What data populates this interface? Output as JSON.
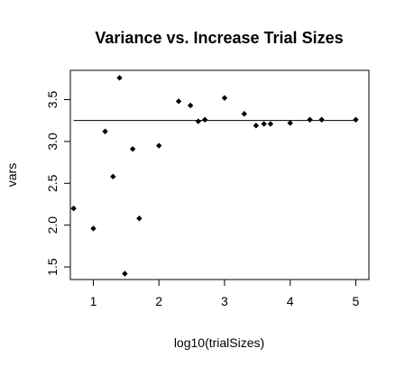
{
  "chart_data": {
    "type": "scatter",
    "title": "Variance vs. Increase Trial Sizes",
    "xlabel": "log10(trialSizes)",
    "ylabel": "vars",
    "xlim": [
      0.65,
      5.2
    ],
    "ylim": [
      1.35,
      3.85
    ],
    "xticks": [
      1,
      2,
      3,
      4,
      5
    ],
    "yticks": [
      1.5,
      2.0,
      2.5,
      3.0,
      3.5
    ],
    "xtick_labels": [
      "1",
      "2",
      "3",
      "4",
      "5"
    ],
    "ytick_labels": [
      "1.5",
      "2.0",
      "2.5",
      "3.0",
      "3.5"
    ],
    "marker": "diamond",
    "color": "#000000",
    "grid": false,
    "reference_line": {
      "type": "horizontal",
      "y": 3.25,
      "x_range": [
        0.7,
        5.0
      ]
    },
    "points": [
      {
        "x": 0.7,
        "y": 2.2
      },
      {
        "x": 1.0,
        "y": 1.96
      },
      {
        "x": 1.18,
        "y": 3.12
      },
      {
        "x": 1.3,
        "y": 2.58
      },
      {
        "x": 1.4,
        "y": 3.76
      },
      {
        "x": 1.48,
        "y": 1.42
      },
      {
        "x": 1.6,
        "y": 2.91
      },
      {
        "x": 1.7,
        "y": 2.08
      },
      {
        "x": 2.0,
        "y": 2.95
      },
      {
        "x": 2.3,
        "y": 3.48
      },
      {
        "x": 2.48,
        "y": 3.43
      },
      {
        "x": 2.6,
        "y": 3.24
      },
      {
        "x": 2.7,
        "y": 3.26
      },
      {
        "x": 3.0,
        "y": 3.52
      },
      {
        "x": 3.3,
        "y": 3.33
      },
      {
        "x": 3.48,
        "y": 3.19
      },
      {
        "x": 3.6,
        "y": 3.21
      },
      {
        "x": 3.7,
        "y": 3.21
      },
      {
        "x": 4.0,
        "y": 3.22
      },
      {
        "x": 4.3,
        "y": 3.26
      },
      {
        "x": 4.48,
        "y": 3.26
      },
      {
        "x": 5.0,
        "y": 3.26
      }
    ]
  }
}
